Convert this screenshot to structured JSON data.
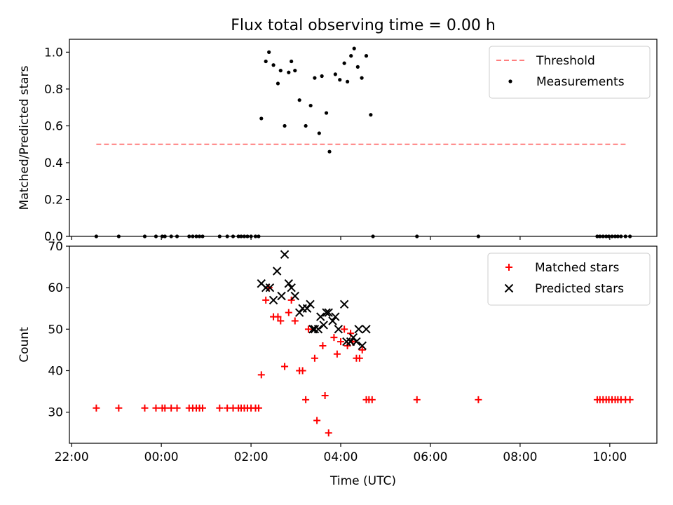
{
  "figure": {
    "title": "Flux total observing time = 0.00 h"
  },
  "chart_data": [
    {
      "type": "scatter",
      "ylabel": "Matched/Predicted stars",
      "xlim_hours": [
        -2.05,
        11.05
      ],
      "ylim": [
        0,
        1.07
      ],
      "yticks": [
        0.0,
        0.2,
        0.4,
        0.6,
        0.8,
        1.0
      ],
      "ytick_labels": [
        "0.0",
        "0.2",
        "0.4",
        "0.6",
        "0.8",
        "1.0"
      ],
      "legend_position": "top-right",
      "threshold": {
        "name": "Threshold",
        "value": 0.5,
        "x_range": [
          -1.45,
          10.4
        ],
        "color": "#ff7f7f",
        "style": "dashed"
      },
      "series": [
        {
          "name": "Measurements",
          "marker": "dot",
          "color": "#000000",
          "x": [
            -1.45,
            -0.95,
            -0.37,
            -0.12,
            0.02,
            0.08,
            0.22,
            0.35,
            0.62,
            0.7,
            0.78,
            0.85,
            0.92,
            1.3,
            1.47,
            1.6,
            1.72,
            1.78,
            1.85,
            1.92,
            2.0,
            2.1,
            2.17,
            2.23,
            2.33,
            2.4,
            2.5,
            2.6,
            2.66,
            2.75,
            2.84,
            2.9,
            2.98,
            3.08,
            3.22,
            3.33,
            3.42,
            3.52,
            3.58,
            3.68,
            3.75,
            3.88,
            3.98,
            4.08,
            4.15,
            4.23,
            4.3,
            4.38,
            4.47,
            4.57,
            4.67,
            4.72,
            5.7,
            7.07,
            9.72,
            9.78,
            9.85,
            9.92,
            9.98,
            10.05,
            10.12,
            10.18,
            10.25,
            10.35,
            10.45
          ],
          "y": [
            0,
            0,
            0,
            0,
            0,
            0,
            0,
            0,
            0,
            0,
            0,
            0,
            0,
            0,
            0,
            0,
            0,
            0,
            0,
            0,
            0,
            0,
            0,
            0.64,
            0.95,
            1.0,
            0.93,
            0.83,
            0.9,
            0.6,
            0.89,
            0.95,
            0.9,
            0.74,
            0.6,
            0.71,
            0.86,
            0.56,
            0.87,
            0.67,
            0.46,
            0.88,
            0.85,
            0.94,
            0.84,
            0.98,
            1.02,
            0.92,
            0.86,
            0.98,
            0.66,
            0,
            0,
            0,
            0,
            0,
            0,
            0,
            0,
            0,
            0,
            0,
            0,
            0,
            0
          ]
        }
      ]
    },
    {
      "type": "scatter",
      "xlabel": "Time (UTC)",
      "ylabel": "Count",
      "xlim_hours": [
        -2.05,
        11.05
      ],
      "ylim": [
        22.5,
        70
      ],
      "yticks": [
        30,
        40,
        50,
        60,
        70
      ],
      "ytick_labels": [
        "30",
        "40",
        "50",
        "60",
        "70"
      ],
      "xticks_hours": [
        -2,
        0,
        2,
        4,
        6,
        8,
        10
      ],
      "xtick_labels": [
        "22:00",
        "00:00",
        "02:00",
        "04:00",
        "06:00",
        "08:00",
        "10:00"
      ],
      "legend_position": "top-right",
      "series": [
        {
          "name": "Matched stars",
          "marker": "plus",
          "color": "#ff0000",
          "x": [
            -1.45,
            -0.95,
            -0.37,
            -0.12,
            0.02,
            0.08,
            0.22,
            0.35,
            0.62,
            0.7,
            0.78,
            0.85,
            0.92,
            1.3,
            1.47,
            1.6,
            1.72,
            1.78,
            1.85,
            1.92,
            2.0,
            2.1,
            2.17,
            2.23,
            2.33,
            2.4,
            2.5,
            2.6,
            2.66,
            2.75,
            2.84,
            2.9,
            2.98,
            3.08,
            3.15,
            3.22,
            3.28,
            3.42,
            3.47,
            3.6,
            3.65,
            3.73,
            3.85,
            3.92,
            4.0,
            4.08,
            4.15,
            4.22,
            4.27,
            4.35,
            4.42,
            4.48,
            4.57,
            4.63,
            4.7,
            5.7,
            7.07,
            9.72,
            9.78,
            9.85,
            9.92,
            9.98,
            10.05,
            10.12,
            10.18,
            10.25,
            10.35,
            10.45
          ],
          "y": [
            31,
            31,
            31,
            31,
            31,
            31,
            31,
            31,
            31,
            31,
            31,
            31,
            31,
            31,
            31,
            31,
            31,
            31,
            31,
            31,
            31,
            31,
            31,
            39,
            57,
            60,
            53,
            53,
            52,
            41,
            54,
            57,
            52,
            40,
            40,
            33,
            50,
            43,
            28,
            46,
            34,
            25,
            48,
            44,
            47,
            50,
            46,
            49,
            47,
            43,
            43,
            45,
            33,
            33,
            33,
            33,
            33,
            33,
            33,
            33,
            33,
            33,
            33,
            33,
            33,
            33,
            33,
            33
          ]
        },
        {
          "name": "Predicted stars",
          "marker": "x",
          "color": "#000000",
          "x": [
            2.23,
            2.33,
            2.42,
            2.5,
            2.58,
            2.68,
            2.75,
            2.84,
            2.9,
            2.98,
            3.08,
            3.15,
            3.25,
            3.32,
            3.38,
            3.42,
            3.5,
            3.55,
            3.62,
            3.68,
            3.73,
            3.82,
            3.88,
            3.95,
            4.08,
            4.13,
            4.22,
            4.28,
            4.35,
            4.4,
            4.48,
            4.57
          ],
          "y": [
            61,
            60,
            60,
            57,
            64,
            58,
            68,
            61,
            60,
            58,
            54,
            55,
            55,
            56,
            50,
            50,
            50,
            53,
            51,
            54,
            54,
            52,
            53,
            50,
            56,
            47,
            47,
            48,
            47,
            50,
            46,
            50
          ]
        }
      ]
    }
  ]
}
